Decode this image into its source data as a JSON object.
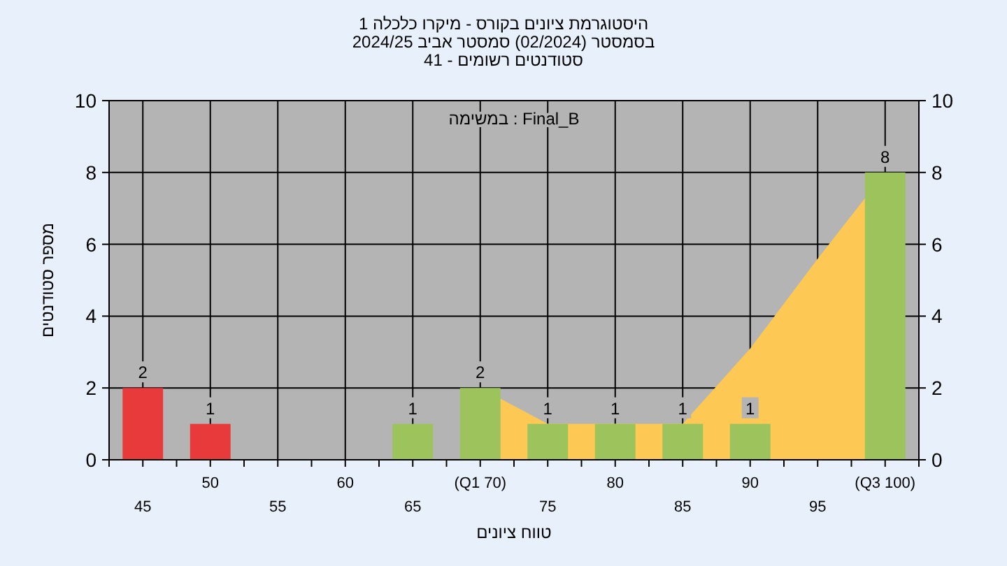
{
  "chart_data": {
    "type": "bar",
    "title": "היסטוגרמת ציונים בקורס - מיקרו כלכלה 1",
    "subtitle": "בסמסטר  (02/2024)  סמסטר אביב 2024/25\nסטודנטים רשומים - 41",
    "xlabel": "טווח ציונים",
    "ylabel": "מספר סטודנטים",
    "annotations": [
      "במשימה : Final_B"
    ],
    "categories": [
      "45",
      "50",
      "55",
      "60",
      "65",
      "(Q1 70)",
      "75",
      "80",
      "85",
      "90",
      "95",
      "(Q3 100)"
    ],
    "series": [
      {
        "type": "area",
        "color": "#fdc853",
        "values": [
          null,
          null,
          null,
          null,
          null,
          2,
          1,
          1,
          1,
          3.1,
          5.6,
          8
        ]
      },
      {
        "colors": [
          "#e83a3a",
          "#e83a3a",
          "#9cc35c",
          "#9cc35c",
          "#9cc35c",
          "#9cc35c",
          "#9cc35c",
          "#9cc35c",
          "#9cc35c",
          "#9cc35c",
          "#9cc35c",
          "#9cc35c"
        ],
        "values": [
          2,
          1,
          0,
          0,
          1,
          2,
          1,
          1,
          1,
          1,
          0,
          8
        ],
        "value_labels": [
          "2",
          "1",
          null,
          null,
          "1",
          "2",
          "1",
          "1",
          "1",
          "1",
          null,
          "8"
        ]
      }
    ],
    "ylim": [
      0,
      10
    ],
    "yticks": [
      0,
      2,
      4,
      6,
      8,
      10
    ],
    "y2lim": [
      0,
      10
    ],
    "y2ticks": [
      0,
      2,
      4,
      6,
      8,
      10
    ],
    "grid": true
  }
}
